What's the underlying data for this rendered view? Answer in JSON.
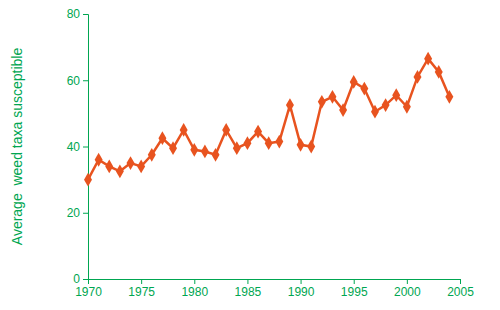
{
  "chart_data": {
    "type": "line",
    "y_label": "Average  weed taxa susceptible",
    "x": [
      1970,
      1971,
      1972,
      1973,
      1974,
      1975,
      1976,
      1977,
      1978,
      1979,
      1980,
      1981,
      1982,
      1983,
      1984,
      1985,
      1986,
      1987,
      1988,
      1989,
      1990,
      1991,
      1992,
      1993,
      1994,
      1995,
      1996,
      1997,
      1998,
      1999,
      2000,
      2001,
      2002,
      2003,
      2004
    ],
    "values": [
      30,
      36,
      34,
      32.5,
      35,
      34,
      37.5,
      42.5,
      39.5,
      45,
      39,
      38.5,
      37.5,
      45,
      39.5,
      41,
      44.5,
      41,
      41.5,
      52.5,
      40.5,
      40,
      53.5,
      55,
      51,
      59.5,
      57.5,
      50.5,
      52.5,
      55.5,
      52,
      61,
      66.5,
      62.5,
      55
    ],
    "color": "#e8531f",
    "marker": "diamond",
    "xlim": [
      1970,
      2005
    ],
    "xticks": [
      1970,
      1975,
      1980,
      1985,
      1990,
      1995,
      2000,
      2005
    ],
    "ylim": [
      0,
      80
    ],
    "yticks": [
      0,
      20,
      40,
      60,
      80
    ],
    "grid": false
  }
}
